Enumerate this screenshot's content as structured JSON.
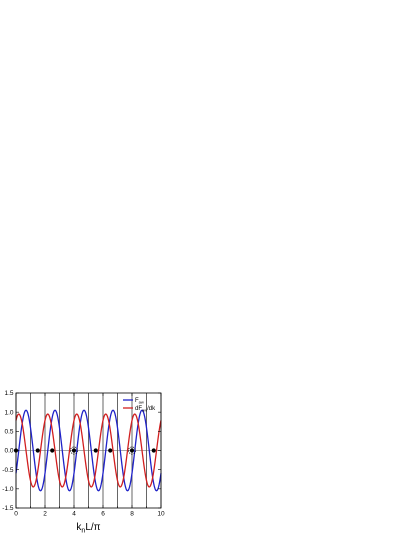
{
  "chart_data": {
    "type": "line",
    "xlabel": {
      "main": "k",
      "sub": "n",
      "rest": "L/π"
    },
    "ylabel": "",
    "xlim": [
      0,
      10
    ],
    "ylim": [
      -1.5,
      1.5
    ],
    "x_ticks": [
      "0",
      "2",
      "4",
      "6",
      "8",
      "10"
    ],
    "y_ticks": [
      "-1.5",
      "-1.0",
      "-0.5",
      "0.0",
      "0.5",
      "1.0",
      "1.5"
    ],
    "grid": false,
    "legend_position": "top-right",
    "vertical_lines_x": [
      0,
      1,
      2,
      3,
      4,
      5,
      6,
      7,
      8,
      9,
      10
    ],
    "series": [
      {
        "name": {
          "main": "F",
          "sub": "aw"
        },
        "color": "#1f22c8",
        "description_values": {
          "period": 2,
          "amplitude": 1.05,
          "phase": "sin(pi*x - 0.6)"
        }
      },
      {
        "name": {
          "main": "dF",
          "sub": "aw",
          "rest": "/dk"
        },
        "color": "#d21f1f",
        "description_values": {
          "period": 2,
          "amplitude": 0.95,
          "phase": "cos(pi*x - 0.6)"
        }
      }
    ],
    "points": {
      "filled_markers": [
        {
          "x": 0,
          "y": 0
        },
        {
          "x": 1.5,
          "y": 0
        },
        {
          "x": 2.5,
          "y": 0
        },
        {
          "x": 4,
          "y": 0
        },
        {
          "x": 5.5,
          "y": 0
        },
        {
          "x": 6.5,
          "y": 0
        },
        {
          "x": 8,
          "y": 0
        },
        {
          "x": 9.5,
          "y": 0
        }
      ],
      "open_markers": [
        {
          "x": 4,
          "y": 0
        },
        {
          "x": 8,
          "y": 0
        }
      ]
    }
  }
}
